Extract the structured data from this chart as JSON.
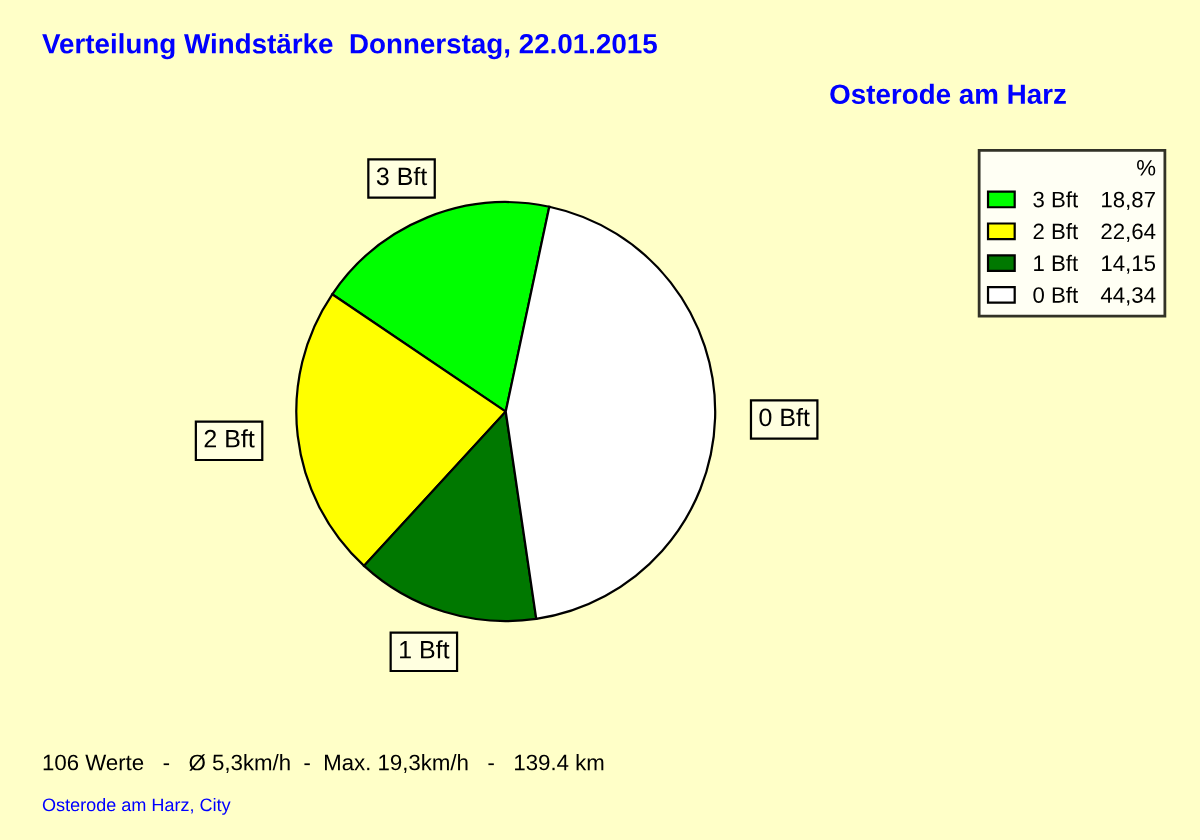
{
  "chart_data": {
    "type": "pie",
    "title": "Verteilung Windstärke  Donnerstag, 22.01.2015",
    "subtitle": "Osterode am Harz",
    "categories": [
      "3 Bft",
      "2 Bft",
      "1 Bft",
      "0 Bft"
    ],
    "values": [
      18.87,
      22.64,
      14.15,
      44.34
    ],
    "value_labels": [
      "18,87",
      "22,64",
      "14,15",
      "44,34"
    ],
    "colors": [
      "#00ff00",
      "#ffff00",
      "#007800",
      "#ffffff"
    ],
    "legend": "top right",
    "legend_title": "%",
    "annotations": [
      "106 Werte   -   Ø 5,3km/h  -  Max. 19,3km/h   -   139.4 km",
      "Osterode am Harz, City"
    ]
  }
}
